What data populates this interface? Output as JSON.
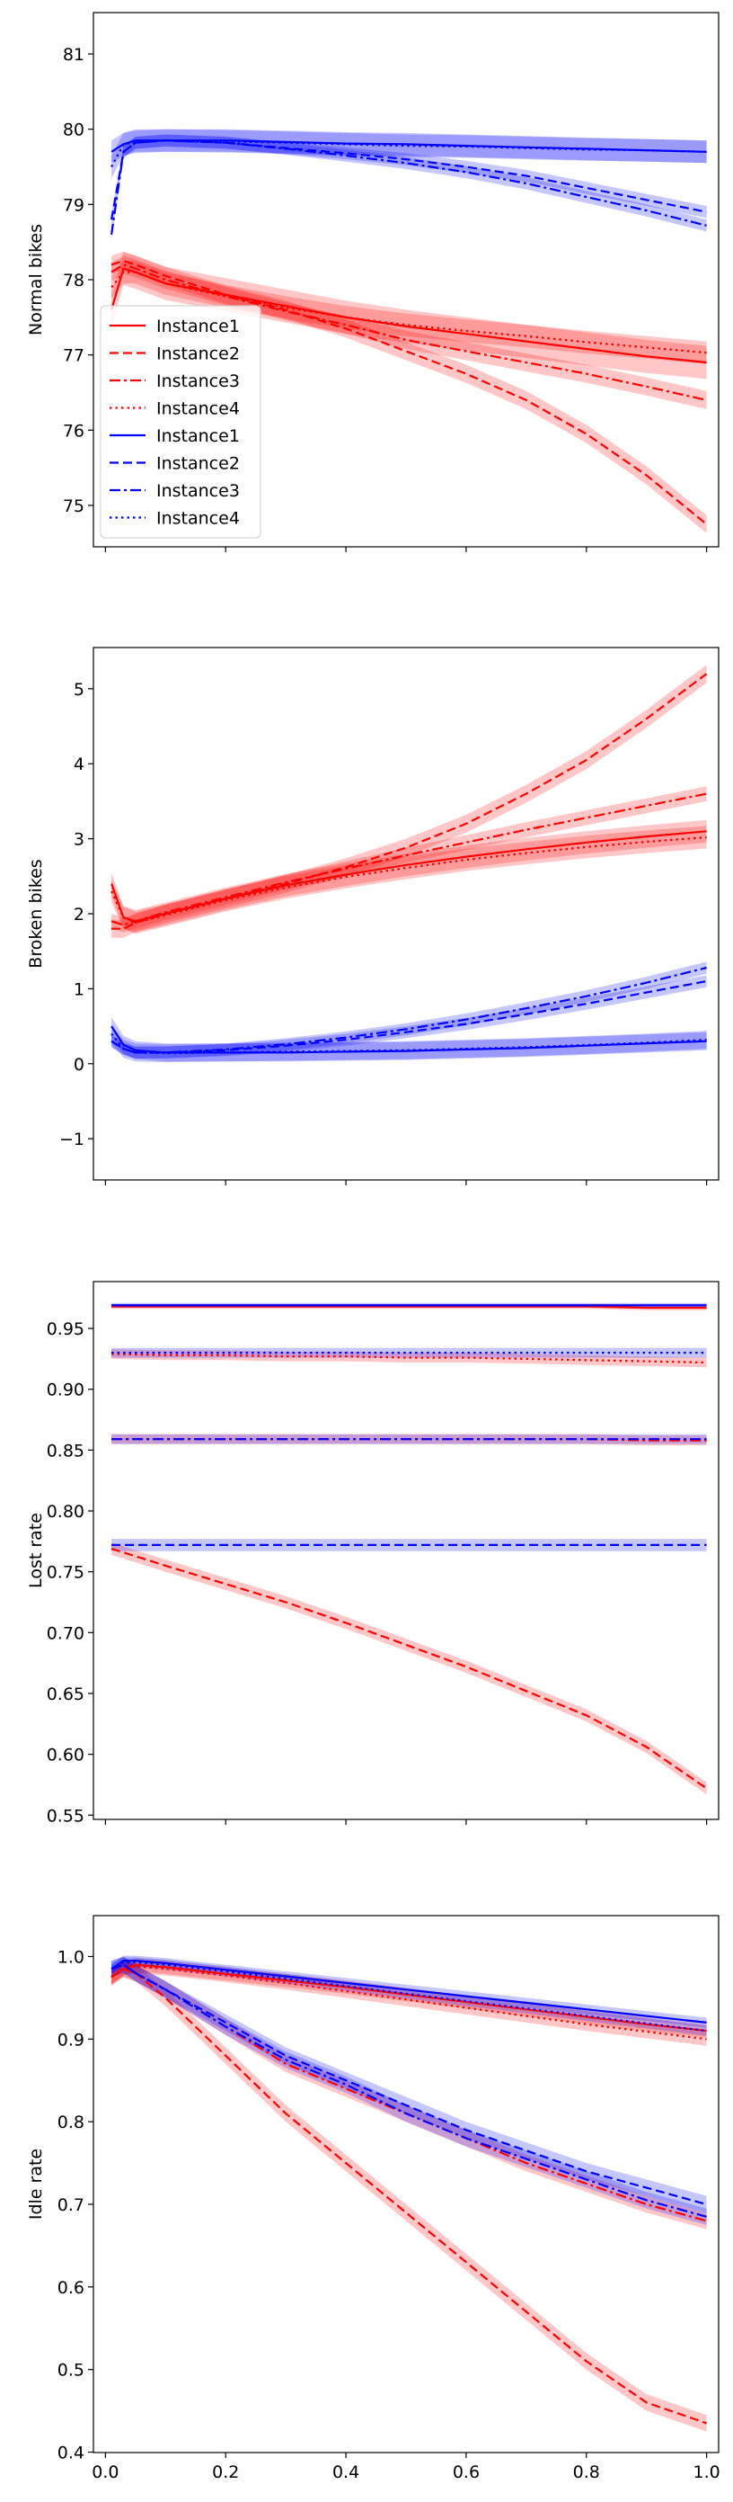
{
  "chart_data": [
    {
      "type": "line",
      "ylabel": "Normal bikes",
      "xlabel": "",
      "xlim": [
        -0.02,
        1.02
      ],
      "ylim": [
        74.45,
        81.55
      ],
      "xticks": [
        0.0,
        0.2,
        0.4,
        0.6,
        0.8,
        1.0
      ],
      "xtick_labels_visible": false,
      "yticks": [
        75,
        76,
        77,
        78,
        79,
        80,
        81
      ],
      "ytick_labels": [
        "75",
        "76",
        "77",
        "78",
        "79",
        "80",
        "81"
      ],
      "legend": {
        "position": "lower-left",
        "entries": [
          {
            "label": "Instance1",
            "color": "#ff0000",
            "dash": "solid"
          },
          {
            "label": "Instance2",
            "color": "#ff0000",
            "dash": "dashed"
          },
          {
            "label": "Instance3",
            "color": "#ff0000",
            "dash": "dashdot"
          },
          {
            "label": "Instance4",
            "color": "#ff0000",
            "dash": "dotted"
          },
          {
            "label": "Instance1",
            "color": "#0000ff",
            "dash": "solid"
          },
          {
            "label": "Instance2",
            "color": "#0000ff",
            "dash": "dashed"
          },
          {
            "label": "Instance3",
            "color": "#0000ff",
            "dash": "dashdot"
          },
          {
            "label": "Instance4",
            "color": "#0000ff",
            "dash": "dotted"
          }
        ]
      },
      "x": [
        0.01,
        0.03,
        0.05,
        0.1,
        0.2,
        0.3,
        0.4,
        0.5,
        0.6,
        0.7,
        0.8,
        0.9,
        1.0
      ],
      "series": [
        {
          "name": "Instance1",
          "color": "#ff0000",
          "dash": "solid",
          "band": 0.22,
          "values": [
            77.6,
            78.15,
            78.1,
            77.95,
            77.8,
            77.65,
            77.5,
            77.38,
            77.28,
            77.18,
            77.08,
            76.98,
            76.9
          ]
        },
        {
          "name": "Instance2",
          "color": "#ff0000",
          "dash": "dashed",
          "band": 0.12,
          "values": [
            78.2,
            78.25,
            78.2,
            78.05,
            77.8,
            77.6,
            77.35,
            77.05,
            76.75,
            76.4,
            75.95,
            75.4,
            74.75
          ]
        },
        {
          "name": "Instance3",
          "color": "#ff0000",
          "dash": "dashdot",
          "band": 0.12,
          "values": [
            78.1,
            78.2,
            78.15,
            78.0,
            77.78,
            77.58,
            77.4,
            77.2,
            77.05,
            76.9,
            76.75,
            76.58,
            76.4
          ]
        },
        {
          "name": "Instance4",
          "color": "#ff0000",
          "dash": "dotted",
          "band": 0.15,
          "values": [
            77.9,
            78.1,
            78.1,
            77.95,
            77.78,
            77.63,
            77.5,
            77.4,
            77.32,
            77.25,
            77.17,
            77.1,
            77.03
          ]
        },
        {
          "name": "Instance1",
          "color": "#0000ff",
          "dash": "solid",
          "band": 0.15,
          "values": [
            79.7,
            79.8,
            79.85,
            79.85,
            79.85,
            79.83,
            79.81,
            79.8,
            79.78,
            79.76,
            79.74,
            79.72,
            79.7
          ]
        },
        {
          "name": "Instance2",
          "color": "#0000ff",
          "dash": "dashed",
          "band": 0.08,
          "values": [
            78.8,
            79.7,
            79.82,
            79.85,
            79.82,
            79.75,
            79.68,
            79.6,
            79.5,
            79.38,
            79.22,
            79.06,
            78.9
          ]
        },
        {
          "name": "Instance3",
          "color": "#0000ff",
          "dash": "dashdot",
          "band": 0.08,
          "values": [
            78.6,
            79.7,
            79.82,
            79.85,
            79.82,
            79.74,
            79.65,
            79.55,
            79.43,
            79.28,
            79.1,
            78.92,
            78.72
          ]
        },
        {
          "name": "Instance4",
          "color": "#0000ff",
          "dash": "dotted",
          "band": 0.15,
          "values": [
            79.5,
            79.8,
            79.83,
            79.85,
            79.84,
            79.82,
            79.8,
            79.78,
            79.77,
            79.75,
            79.73,
            79.72,
            79.7
          ]
        }
      ]
    },
    {
      "type": "line",
      "ylabel": "Broken bikes",
      "xlabel": "",
      "xlim": [
        -0.02,
        1.02
      ],
      "ylim": [
        -1.55,
        5.55
      ],
      "xticks": [
        0.0,
        0.2,
        0.4,
        0.6,
        0.8,
        1.0
      ],
      "xtick_labels_visible": false,
      "yticks": [
        -1,
        0,
        1,
        2,
        3,
        4,
        5
      ],
      "ytick_labels": [
        "−1",
        "0",
        "1",
        "2",
        "3",
        "4",
        "5"
      ],
      "x": [
        0.01,
        0.03,
        0.05,
        0.1,
        0.2,
        0.3,
        0.4,
        0.5,
        0.6,
        0.7,
        0.8,
        0.9,
        1.0
      ],
      "series": [
        {
          "name": "Instance1",
          "color": "#ff0000",
          "dash": "solid",
          "band": 0.15,
          "values": [
            2.4,
            1.95,
            1.9,
            2.0,
            2.2,
            2.38,
            2.52,
            2.65,
            2.76,
            2.86,
            2.95,
            3.03,
            3.1
          ]
        },
        {
          "name": "Instance2",
          "color": "#ff0000",
          "dash": "dashed",
          "band": 0.12,
          "values": [
            1.8,
            1.8,
            1.88,
            2.0,
            2.2,
            2.4,
            2.62,
            2.88,
            3.2,
            3.6,
            4.05,
            4.6,
            5.2
          ]
        },
        {
          "name": "Instance3",
          "color": "#ff0000",
          "dash": "dashdot",
          "band": 0.1,
          "values": [
            1.9,
            1.85,
            1.9,
            2.02,
            2.22,
            2.42,
            2.6,
            2.78,
            2.95,
            3.12,
            3.28,
            3.44,
            3.6
          ]
        },
        {
          "name": "Instance4",
          "color": "#ff0000",
          "dash": "dotted",
          "band": 0.15,
          "values": [
            2.3,
            1.95,
            1.88,
            1.98,
            2.18,
            2.35,
            2.49,
            2.61,
            2.72,
            2.81,
            2.89,
            2.96,
            3.02
          ]
        },
        {
          "name": "Instance1",
          "color": "#0000ff",
          "dash": "solid",
          "band": 0.12,
          "values": [
            0.5,
            0.25,
            0.18,
            0.15,
            0.15,
            0.15,
            0.16,
            0.17,
            0.19,
            0.21,
            0.24,
            0.27,
            0.3
          ]
        },
        {
          "name": "Instance2",
          "color": "#0000ff",
          "dash": "dashed",
          "band": 0.08,
          "values": [
            0.3,
            0.2,
            0.15,
            0.15,
            0.18,
            0.24,
            0.32,
            0.42,
            0.53,
            0.66,
            0.8,
            0.95,
            1.1
          ]
        },
        {
          "name": "Instance3",
          "color": "#0000ff",
          "dash": "dashdot",
          "band": 0.08,
          "values": [
            0.3,
            0.2,
            0.15,
            0.15,
            0.19,
            0.26,
            0.35,
            0.46,
            0.59,
            0.74,
            0.9,
            1.08,
            1.28
          ]
        },
        {
          "name": "Instance4",
          "color": "#0000ff",
          "dash": "dotted",
          "band": 0.12,
          "values": [
            0.4,
            0.2,
            0.15,
            0.14,
            0.15,
            0.16,
            0.17,
            0.18,
            0.2,
            0.22,
            0.25,
            0.28,
            0.32
          ]
        }
      ]
    },
    {
      "type": "line",
      "ylabel": "Lost rate",
      "xlabel": "",
      "xlim": [
        -0.02,
        1.02
      ],
      "ylim": [
        0.5465,
        0.9885
      ],
      "xticks": [
        0.0,
        0.2,
        0.4,
        0.6,
        0.8,
        1.0
      ],
      "xtick_labels_visible": false,
      "yticks": [
        0.55,
        0.6,
        0.65,
        0.7,
        0.75,
        0.8,
        0.85,
        0.9,
        0.95
      ],
      "ytick_labels": [
        "0.55",
        "0.60",
        "0.65",
        "0.70",
        "0.75",
        "0.80",
        "0.85",
        "0.90",
        "0.95"
      ],
      "x": [
        0.01,
        0.1,
        0.2,
        0.3,
        0.4,
        0.5,
        0.6,
        0.7,
        0.8,
        0.9,
        1.0
      ],
      "series": [
        {
          "name": "Instance1",
          "color": "#ff0000",
          "dash": "solid",
          "band": 0.002,
          "values": [
            0.968,
            0.968,
            0.968,
            0.968,
            0.968,
            0.968,
            0.968,
            0.968,
            0.968,
            0.967,
            0.967
          ]
        },
        {
          "name": "Instance2",
          "color": "#ff0000",
          "dash": "dashed",
          "band": 0.005,
          "values": [
            0.769,
            0.755,
            0.74,
            0.725,
            0.708,
            0.69,
            0.672,
            0.652,
            0.632,
            0.606,
            0.572
          ]
        },
        {
          "name": "Instance3",
          "color": "#ff0000",
          "dash": "dashdot",
          "band": 0.004,
          "values": [
            0.859,
            0.859,
            0.859,
            0.859,
            0.859,
            0.859,
            0.859,
            0.859,
            0.859,
            0.858,
            0.858
          ]
        },
        {
          "name": "Instance4",
          "color": "#ff0000",
          "dash": "dotted",
          "band": 0.004,
          "values": [
            0.929,
            0.928,
            0.928,
            0.927,
            0.927,
            0.926,
            0.926,
            0.925,
            0.924,
            0.923,
            0.922
          ]
        },
        {
          "name": "Instance1",
          "color": "#0000ff",
          "dash": "solid",
          "band": 0.002,
          "values": [
            0.969,
            0.969,
            0.969,
            0.969,
            0.969,
            0.969,
            0.969,
            0.969,
            0.969,
            0.969,
            0.969
          ]
        },
        {
          "name": "Instance2",
          "color": "#0000ff",
          "dash": "dashed",
          "band": 0.005,
          "values": [
            0.772,
            0.772,
            0.772,
            0.772,
            0.772,
            0.772,
            0.772,
            0.772,
            0.772,
            0.772,
            0.772
          ]
        },
        {
          "name": "Instance3",
          "color": "#0000ff",
          "dash": "dashdot",
          "band": 0.004,
          "values": [
            0.859,
            0.859,
            0.859,
            0.859,
            0.859,
            0.859,
            0.859,
            0.859,
            0.859,
            0.859,
            0.859
          ]
        },
        {
          "name": "Instance4",
          "color": "#0000ff",
          "dash": "dotted",
          "band": 0.004,
          "values": [
            0.93,
            0.93,
            0.93,
            0.93,
            0.93,
            0.93,
            0.93,
            0.93,
            0.93,
            0.93,
            0.93
          ]
        }
      ]
    },
    {
      "type": "line",
      "ylabel": "Idle rate",
      "xlabel": "",
      "xlim": [
        -0.02,
        1.02
      ],
      "ylim": [
        0.3995,
        1.0495
      ],
      "xticks": [
        0.0,
        0.2,
        0.4,
        0.6,
        0.8,
        1.0
      ],
      "xtick_labels": [
        "0.0",
        "0.2",
        "0.4",
        "0.6",
        "0.8",
        "1.0"
      ],
      "xtick_labels_visible": true,
      "yticks": [
        0.4,
        0.5,
        0.6,
        0.7,
        0.8,
        0.9,
        1.0
      ],
      "ytick_labels": [
        "0.4",
        "0.5",
        "0.6",
        "0.7",
        "0.8",
        "0.9",
        "1.0"
      ],
      "x": [
        0.01,
        0.03,
        0.05,
        0.1,
        0.2,
        0.3,
        0.4,
        0.5,
        0.6,
        0.7,
        0.8,
        0.9,
        1.0
      ],
      "series": [
        {
          "name": "Instance1",
          "color": "#ff0000",
          "dash": "solid",
          "band": 0.008,
          "values": [
            0.975,
            0.985,
            0.99,
            0.987,
            0.979,
            0.971,
            0.963,
            0.954,
            0.945,
            0.936,
            0.927,
            0.918,
            0.91
          ]
        },
        {
          "name": "Instance2",
          "color": "#ff0000",
          "dash": "dashed",
          "band": 0.01,
          "values": [
            0.975,
            0.985,
            0.98,
            0.95,
            0.88,
            0.81,
            0.75,
            0.69,
            0.63,
            0.57,
            0.51,
            0.46,
            0.435
          ]
        },
        {
          "name": "Instance3",
          "color": "#ff0000",
          "dash": "dashdot",
          "band": 0.01,
          "values": [
            0.975,
            0.985,
            0.98,
            0.96,
            0.915,
            0.87,
            0.84,
            0.81,
            0.78,
            0.75,
            0.725,
            0.7,
            0.68
          ]
        },
        {
          "name": "Instance4",
          "color": "#ff0000",
          "dash": "dotted",
          "band": 0.008,
          "values": [
            0.975,
            0.985,
            0.988,
            0.985,
            0.977,
            0.968,
            0.958,
            0.948,
            0.938,
            0.928,
            0.918,
            0.909,
            0.9
          ]
        },
        {
          "name": "Instance1",
          "color": "#0000ff",
          "dash": "solid",
          "band": 0.006,
          "values": [
            0.985,
            0.995,
            0.995,
            0.992,
            0.984,
            0.976,
            0.968,
            0.96,
            0.952,
            0.944,
            0.936,
            0.928,
            0.92
          ]
        },
        {
          "name": "Instance2",
          "color": "#0000ff",
          "dash": "dashed",
          "band": 0.01,
          "values": [
            0.985,
            0.99,
            0.98,
            0.96,
            0.92,
            0.88,
            0.85,
            0.82,
            0.79,
            0.765,
            0.74,
            0.72,
            0.7
          ]
        },
        {
          "name": "Instance3",
          "color": "#0000ff",
          "dash": "dashdot",
          "band": 0.01,
          "values": [
            0.985,
            0.99,
            0.98,
            0.96,
            0.915,
            0.875,
            0.845,
            0.81,
            0.78,
            0.755,
            0.73,
            0.705,
            0.685
          ]
        },
        {
          "name": "Instance4",
          "color": "#0000ff",
          "dash": "dotted",
          "band": 0.006,
          "values": [
            0.985,
            0.993,
            0.993,
            0.99,
            0.982,
            0.973,
            0.964,
            0.955,
            0.946,
            0.937,
            0.928,
            0.919,
            0.91
          ]
        }
      ]
    }
  ]
}
